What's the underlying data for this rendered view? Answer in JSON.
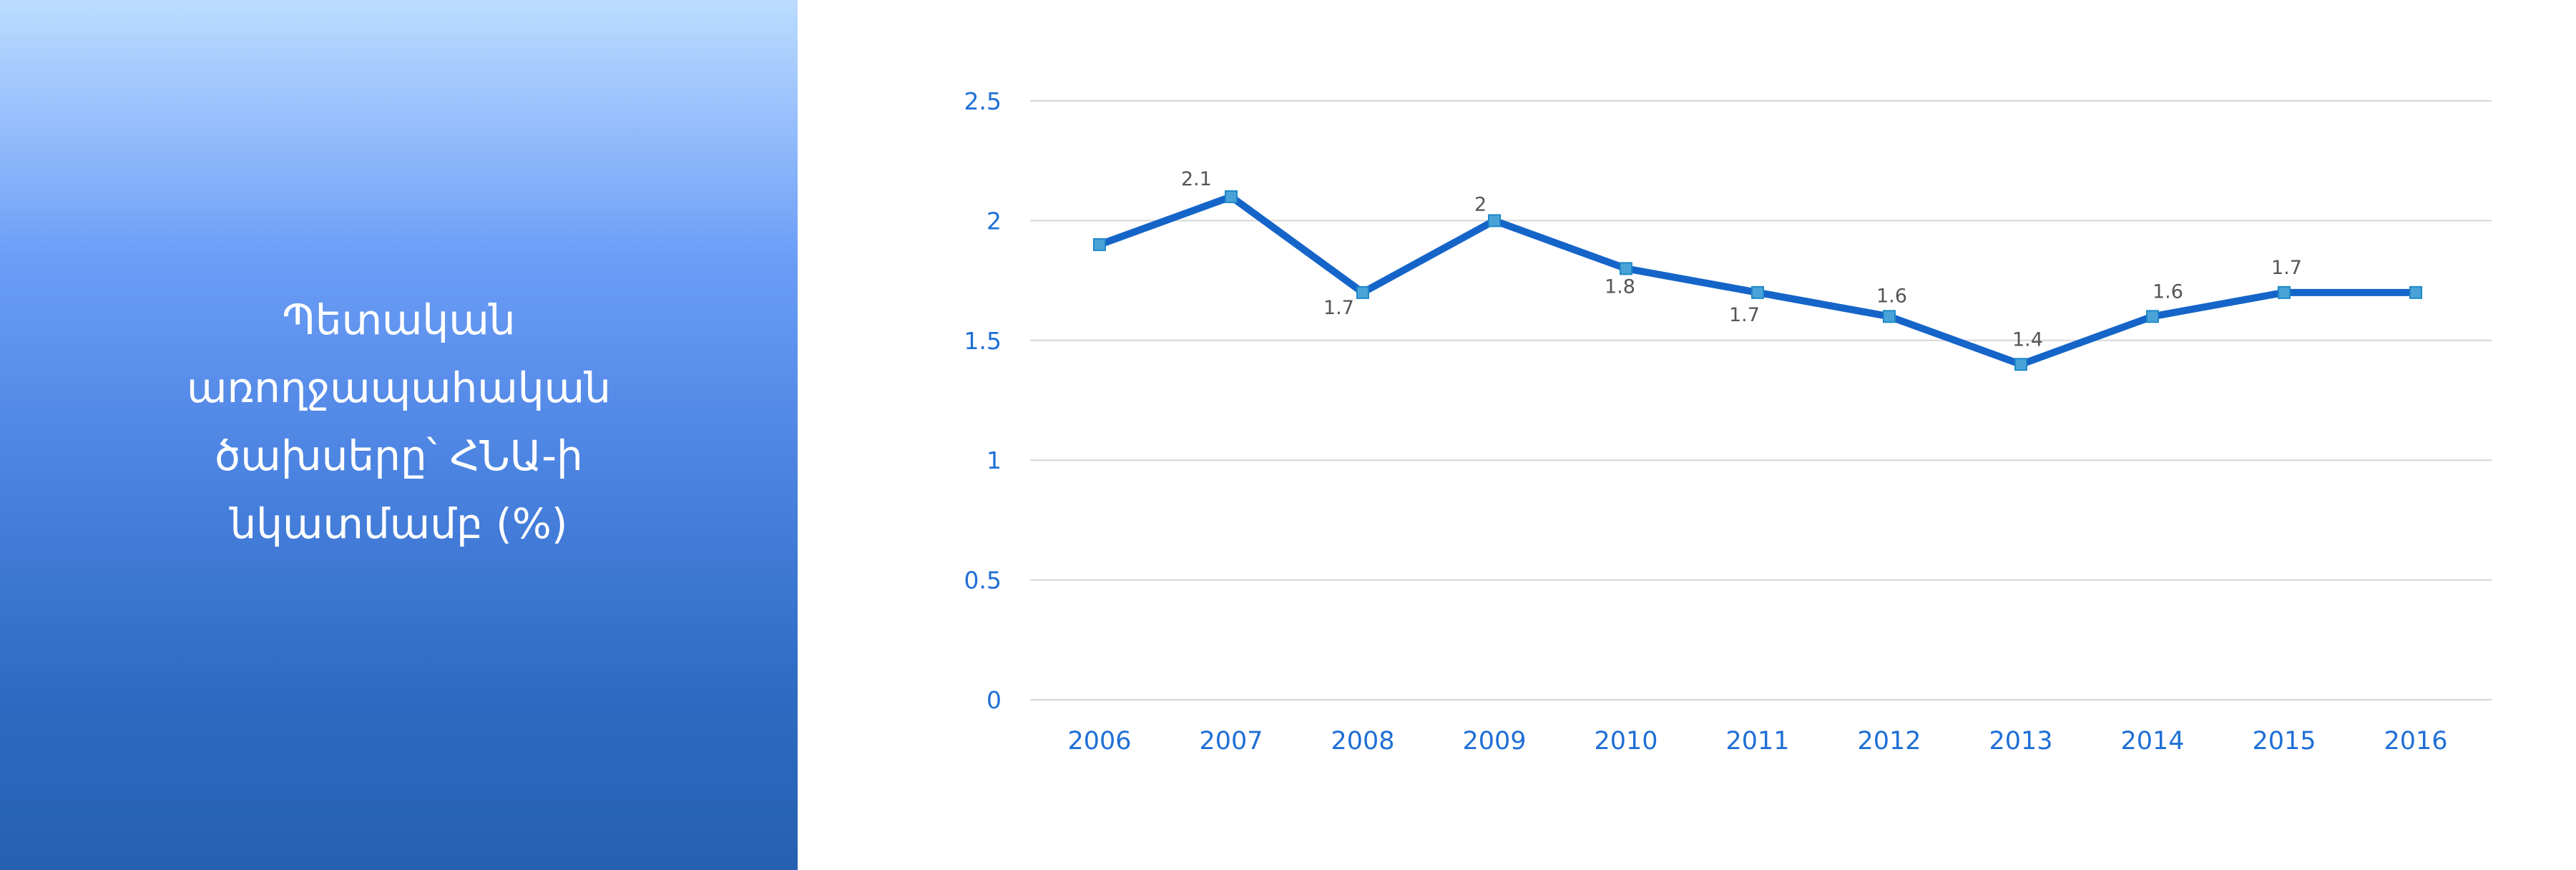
{
  "panel": {
    "title_lines": [
      "Պետական",
      "առողջապահական",
      "ծախսերը՝ ՀՆԱ-ի",
      "նկատմամբ (%)"
    ]
  },
  "colors": {
    "line": "#1565c9",
    "marker": "#4aa3d8",
    "tick_text": "#1f6fd6",
    "data_label": "#555555",
    "grid": "#d6d6d6",
    "panel_top": "#bcdcff",
    "panel_bottom": "#2660b0"
  },
  "chart_data": {
    "type": "line",
    "title": "",
    "xlabel": "",
    "ylabel": "",
    "categories": [
      "2006",
      "2007",
      "2008",
      "2009",
      "2010",
      "2011",
      "2012",
      "2013",
      "2014",
      "2015",
      "2016"
    ],
    "series": [
      {
        "values": [
          1.9,
          2.1,
          1.7,
          2.0,
          1.8,
          1.7,
          1.6,
          1.4,
          1.6,
          1.7,
          1.7
        ],
        "data_labels": [
          "",
          "2.1",
          "1.7",
          "2",
          "1.8",
          "1.7",
          "1.6",
          "1.4",
          "1.6",
          "1.7",
          ""
        ]
      }
    ],
    "ylim": [
      0,
      2.5
    ],
    "yticks": [
      "0",
      "0.5",
      "1",
      "1.5",
      "2",
      "2.5"
    ],
    "grid": true,
    "legend": "none",
    "markers": true
  }
}
